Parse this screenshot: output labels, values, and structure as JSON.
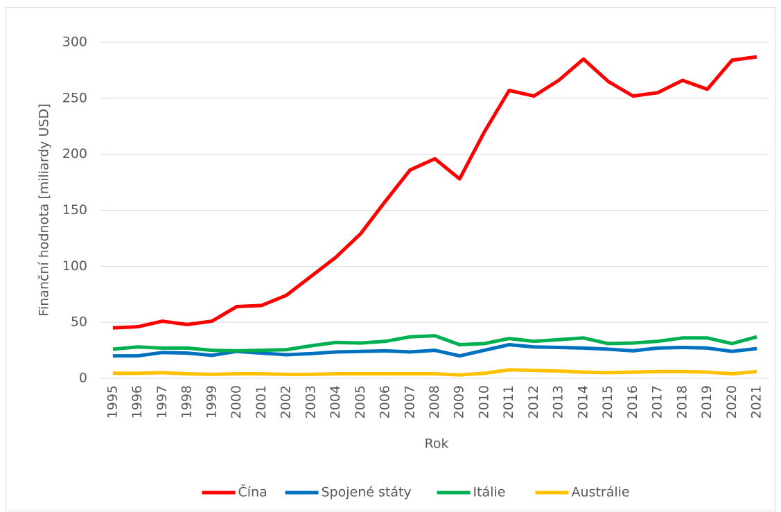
{
  "chart_data": {
    "type": "line",
    "x_label": "Rok",
    "y_label": "Finanční hodnota [miliardy USD]",
    "categories": [
      "1995",
      "1996",
      "1997",
      "1998",
      "1999",
      "2000",
      "2001",
      "2002",
      "2003",
      "2004",
      "2005",
      "2006",
      "2007",
      "2008",
      "2009",
      "2010",
      "2011",
      "2012",
      "2013",
      "2014",
      "2015",
      "2016",
      "2017",
      "2018",
      "2019",
      "2020",
      "2021"
    ],
    "series": [
      {
        "name": "Čína",
        "color": "#ff0000",
        "values": [
          45,
          46,
          51,
          48,
          51,
          64,
          65,
          74,
          91,
          108,
          129,
          158,
          186,
          196,
          178,
          220,
          257,
          252,
          266,
          285,
          265,
          252,
          255,
          266,
          258,
          284,
          287
        ]
      },
      {
        "name": "Spojené státy",
        "color": "#0070c0",
        "values": [
          20,
          20,
          23,
          22.5,
          20.5,
          24,
          22.5,
          21,
          22,
          23.5,
          24,
          24.5,
          23.5,
          25,
          20,
          25,
          30,
          28,
          27.5,
          27,
          26,
          24.5,
          27,
          27.5,
          27,
          24,
          26.5
        ]
      },
      {
        "name": "Itálie",
        "color": "#00b050",
        "values": [
          26,
          28,
          27,
          27,
          25,
          24.5,
          25,
          25.5,
          29,
          32,
          31.5,
          33,
          37,
          38,
          30,
          31,
          35.5,
          33,
          34.5,
          36,
          31,
          31.5,
          33,
          36,
          36,
          31,
          37
        ]
      },
      {
        "name": "Austrálie",
        "color": "#ffc000",
        "values": [
          4.5,
          4.5,
          5,
          4,
          3.5,
          4,
          4,
          3.5,
          3.5,
          4,
          4,
          4,
          4,
          4,
          3,
          4.5,
          7.5,
          7,
          6.5,
          5.5,
          5,
          5.5,
          6,
          6,
          5.5,
          4,
          6
        ]
      }
    ],
    "ylim": [
      0,
      300
    ],
    "yticks": [
      0,
      50,
      100,
      150,
      200,
      250,
      300
    ],
    "grid": true,
    "legend": "bottom"
  }
}
